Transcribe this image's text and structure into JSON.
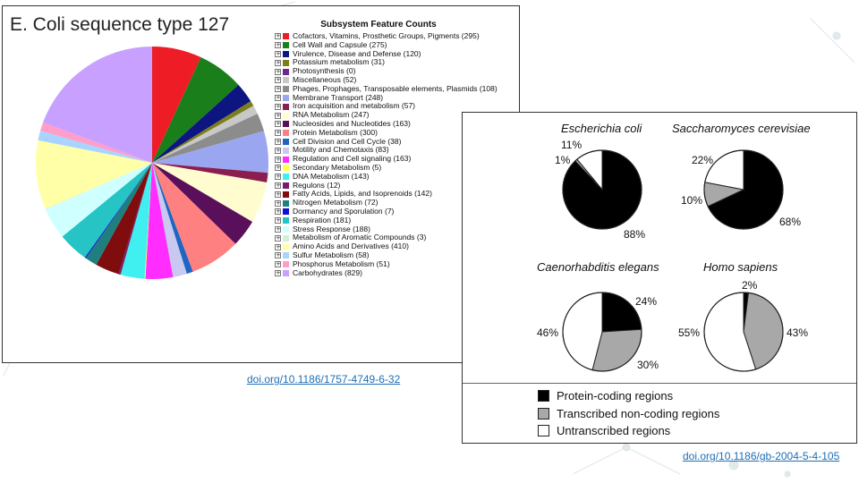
{
  "colors": {
    "link": "#1e6fb5",
    "protein": "#000000",
    "noncoding": "#a8a8a8",
    "untranscribed": "#ffffff"
  },
  "left": {
    "title": "E. Coli sequence type 127",
    "doi": "doi.org/10.1186/1757-4749-6-32"
  },
  "right": {
    "doi": "doi.org/10.1186/gb-2004-5-4-105",
    "legend_labels": [
      "Protein-coding regions",
      "Transcribed non-coding regions",
      "Untranscribed regions"
    ]
  },
  "chart_data": [
    {
      "type": "pie",
      "title": "Subsystem Feature Counts",
      "labels": [
        "Cofactors, Vitamins, Prosthetic Groups, Pigments (295)",
        "Cell Wall and Capsule (275)",
        "Virulence, Disease and Defense (120)",
        "Potassium metabolism (31)",
        "Photosynthesis (0)",
        "Miscellaneous (52)",
        "Phages, Prophages, Transposable elements, Plasmids (108)",
        "Membrane Transport (248)",
        "Iron acquisition and metabolism (57)",
        "RNA Metabolism (247)",
        "Nucleosides and Nucleotides (163)",
        "Protein Metabolism (300)",
        "Cell Division and Cell Cycle (38)",
        "Motility and Chemotaxis (83)",
        "Regulation and Cell signaling (163)",
        "Secondary Metabolism (5)",
        "DNA Metabolism (143)",
        "Regulons (12)",
        "Fatty Acids, Lipids, and Isoprenoids (142)",
        "Nitrogen Metabolism (72)",
        "Dormancy and Sporulation (7)",
        "Respiration (181)",
        "Stress Response (188)",
        "Metabolism of Aromatic Compounds (3)",
        "Amino Acids and Derivatives (410)",
        "Sulfur Metabolism (58)",
        "Phosphorus Metabolism (51)",
        "Carbohydrates (829)"
      ],
      "values": [
        295,
        275,
        120,
        31,
        0,
        52,
        108,
        248,
        57,
        247,
        163,
        300,
        38,
        83,
        163,
        5,
        143,
        12,
        142,
        72,
        7,
        181,
        188,
        3,
        410,
        58,
        51,
        829
      ],
      "colors": [
        "#ee1c25",
        "#1a7f1a",
        "#0d1680",
        "#7d7d1a",
        "#6a2a8c",
        "#c8c8c8",
        "#8c8c8c",
        "#9aa6f0",
        "#8b1e4e",
        "#fffdd0",
        "#5a0f5a",
        "#ff8080",
        "#1f66c1",
        "#c8c8f0",
        "#ff2dff",
        "#ffff4d",
        "#40f0f0",
        "#7a1a6e",
        "#800d0d",
        "#1f7f7f",
        "#1010d0",
        "#26c4c4",
        "#d0ffff",
        "#d4f0d4",
        "#ffffa8",
        "#a8d4ff",
        "#ff9ec8",
        "#c8a0ff"
      ]
    },
    {
      "type": "pie",
      "organism": "Escherichia coli",
      "series_names": [
        "Protein-coding regions",
        "Transcribed non-coding regions",
        "Untranscribed regions"
      ],
      "values": [
        88,
        1,
        11
      ],
      "labels": [
        "88%",
        "1%",
        "11%"
      ]
    },
    {
      "type": "pie",
      "organism": "Saccharomyces cerevisiae",
      "series_names": [
        "Protein-coding regions",
        "Transcribed non-coding regions",
        "Untranscribed regions"
      ],
      "values": [
        68,
        10,
        22
      ],
      "labels": [
        "68%",
        "10%",
        "22%"
      ]
    },
    {
      "type": "pie",
      "organism": "Caenorhabditis elegans",
      "series_names": [
        "Protein-coding regions",
        "Transcribed non-coding regions",
        "Untranscribed regions"
      ],
      "values": [
        24,
        30,
        46
      ],
      "labels": [
        "24%",
        "30%",
        "46%"
      ]
    },
    {
      "type": "pie",
      "organism": "Homo sapiens",
      "series_names": [
        "Protein-coding regions",
        "Transcribed non-coding regions",
        "Untranscribed regions"
      ],
      "values": [
        2,
        43,
        55
      ],
      "labels": [
        "2%",
        "43%",
        "55%"
      ]
    }
  ]
}
